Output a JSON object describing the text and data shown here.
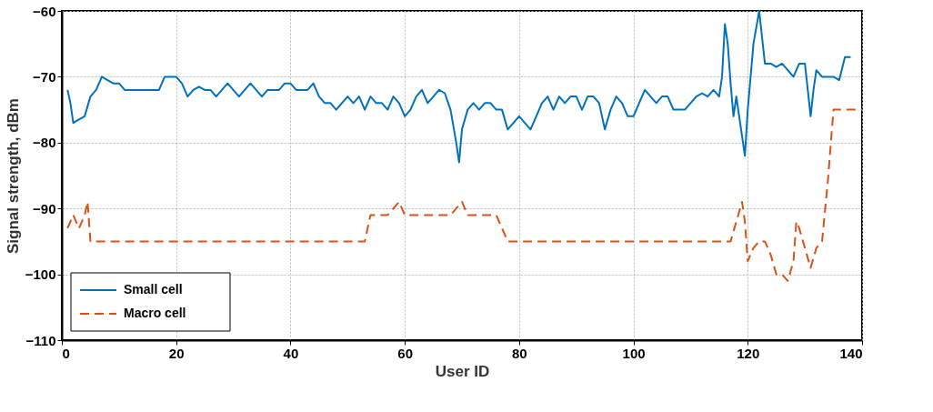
{
  "chart_data": {
    "type": "line",
    "xlabel": "User ID",
    "ylabel": "Signal strength, dBm",
    "xlim": [
      0,
      140
    ],
    "ylim": [
      -110,
      -60
    ],
    "xticks": [
      0,
      20,
      40,
      60,
      80,
      100,
      120,
      140
    ],
    "yticks": [
      -110,
      -100,
      -90,
      -80,
      -70,
      -60
    ],
    "grid": true,
    "legend": "bottom left",
    "series": [
      {
        "name": "Small cell",
        "color": "#0072bd",
        "line_style": "solid",
        "x": [
          1,
          1.5,
          2,
          3,
          4,
          5,
          6,
          7,
          8,
          9,
          10,
          11,
          17,
          18,
          20,
          21,
          22,
          23,
          24,
          25,
          26,
          27,
          28,
          29,
          30,
          31,
          32,
          33,
          34,
          35,
          36,
          37,
          38,
          39,
          40,
          41,
          42,
          43,
          44,
          45,
          46,
          47,
          48,
          49,
          50,
          51,
          52,
          53,
          54,
          55,
          56,
          57,
          58,
          59,
          60,
          61,
          62,
          63,
          64,
          65,
          66,
          67,
          68,
          69,
          69.5,
          70,
          71,
          72,
          73,
          74,
          75,
          76,
          77,
          78,
          79,
          80,
          81,
          82,
          83,
          84,
          85,
          86,
          87,
          88,
          89,
          90,
          91,
          92,
          93,
          94,
          95,
          96,
          97,
          98,
          99,
          100,
          101,
          102,
          103,
          104,
          105,
          106,
          107,
          109,
          110,
          111,
          112,
          113,
          114,
          115,
          115.5,
          116,
          116.5,
          117,
          117.5,
          118,
          119,
          119.5,
          120,
          121,
          122,
          122.5,
          123,
          124,
          125,
          126,
          127,
          128,
          129,
          130,
          130.5,
          131,
          131.5,
          132,
          133,
          135,
          136,
          137,
          138
        ],
        "values": [
          -72,
          -74,
          -77,
          -76.5,
          -76,
          -73,
          -72,
          -70,
          -70.5,
          -71,
          -71,
          -72,
          -72,
          -70,
          -70,
          -71,
          -73,
          -72,
          -71.5,
          -72,
          -72,
          -73,
          -72,
          -71,
          -72,
          -73,
          -72,
          -71,
          -72,
          -73,
          -72,
          -72,
          -72,
          -71,
          -71,
          -72,
          -72,
          -72,
          -71,
          -73,
          -74,
          -74,
          -75,
          -74,
          -73,
          -74,
          -73,
          -75,
          -73,
          -74,
          -74,
          -75,
          -73,
          -74,
          -76,
          -75,
          -73,
          -72,
          -74,
          -73,
          -72,
          -72.5,
          -75,
          -80,
          -83,
          -78,
          -75,
          -74,
          -75,
          -74,
          -74,
          -75,
          -75,
          -78,
          -77,
          -76,
          -77,
          -78,
          -76,
          -74,
          -73,
          -75,
          -73,
          -74,
          -73,
          -73,
          -75,
          -73,
          -73,
          -74,
          -78,
          -75,
          -73,
          -74,
          -76,
          -76,
          -74,
          -72,
          -73,
          -74,
          -73,
          -73,
          -75,
          -75,
          -74,
          -73,
          -72.5,
          -73,
          -72,
          -73,
          -70,
          -62,
          -65,
          -71,
          -76,
          -73,
          -79,
          -82,
          -75,
          -65,
          -60,
          -64,
          -68,
          -68,
          -68.5,
          -68,
          -69,
          -70,
          -68,
          -68,
          -72,
          -76,
          -72,
          -69,
          -70,
          -70,
          -70.5,
          -67,
          -67
        ]
      },
      {
        "name": "Macro cell",
        "color": "#d95319",
        "line_style": "dashed",
        "x": [
          1,
          2,
          3,
          4,
          4.5,
          5,
          53,
          54,
          57,
          58,
          59,
          60,
          68,
          69,
          70,
          71,
          76,
          77,
          78,
          117,
          118,
          119,
          119.5,
          120,
          121,
          122,
          123,
          124,
          125,
          126,
          127,
          128,
          128.5,
          129,
          130,
          131,
          132,
          133,
          134,
          135,
          140
        ],
        "values": [
          -93,
          -91,
          -93,
          -91,
          -89,
          -95,
          -95,
          -91,
          -91,
          -90,
          -89,
          -91,
          -91,
          -90,
          -89,
          -91,
          -91,
          -93,
          -95,
          -95,
          -92,
          -89,
          -92,
          -98,
          -96,
          -95,
          -95,
          -97,
          -100,
          -100,
          -101,
          -98,
          -92,
          -93,
          -96,
          -99,
          -96,
          -95,
          -86,
          -75,
          -75
        ]
      }
    ]
  }
}
